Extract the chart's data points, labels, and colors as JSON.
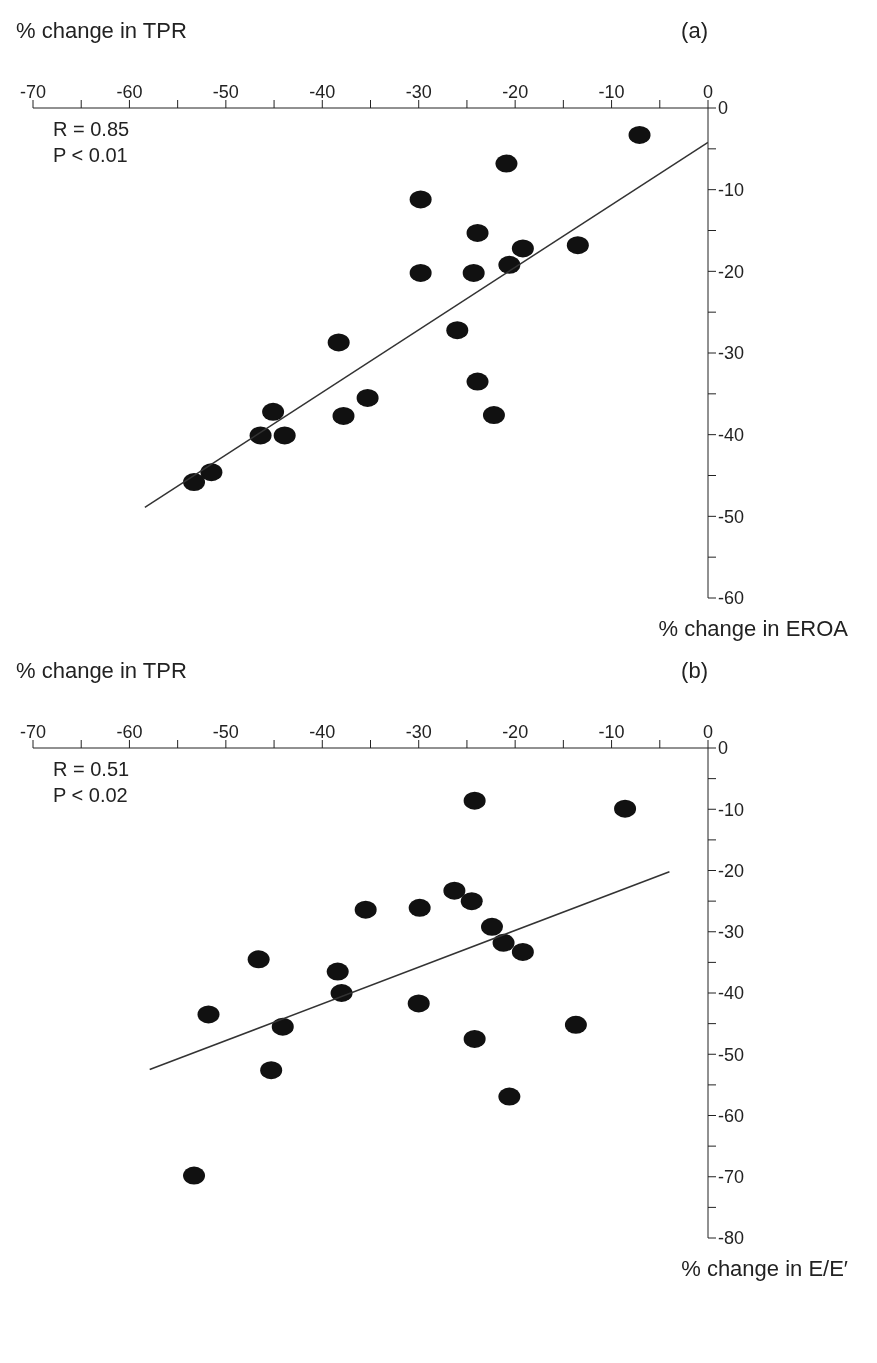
{
  "chart_data": [
    {
      "type": "scatter",
      "title": "(a)",
      "xlabel": "% change in TPR",
      "ylabel": "% change in EROA",
      "annotations": [
        "R = 0.85",
        "P < 0.01"
      ],
      "xlim": [
        -70,
        0
      ],
      "ylim": [
        -60,
        0
      ],
      "xticks": [
        -70,
        {
          "value": -65,
          "label": null
        },
        -60,
        {
          "value": -55,
          "label": null
        },
        -50,
        {
          "value": -45,
          "label": null
        },
        -40,
        {
          "value": -35,
          "label": null
        },
        -30,
        {
          "value": -25,
          "label": null
        },
        -20,
        {
          "value": -15,
          "label": null
        },
        -10,
        {
          "value": -5,
          "label": null
        },
        0
      ],
      "yticks": [
        -60,
        {
          "value": -55,
          "label": null
        },
        -50,
        {
          "value": -45,
          "label": null
        },
        -40,
        {
          "value": -35,
          "label": null
        },
        -30,
        {
          "value": -25,
          "label": null
        },
        -20,
        {
          "value": -15,
          "label": null
        },
        -10,
        {
          "value": -5,
          "label": null
        },
        0
      ],
      "series": [
        {
          "marker": "circle",
          "color": "#111111",
          "x": [
            -7.1,
            -20.9,
            -29.8,
            -23.9,
            -19.2,
            -13.5,
            -29.8,
            -24.3,
            -20.6,
            -26.0,
            -38.3,
            -23.9,
            -22.2,
            -37.8,
            -35.3,
            -45.1,
            -46.4,
            -43.9,
            -51.5,
            -53.3
          ],
          "values": [
            -3.3,
            -6.8,
            -11.2,
            -15.3,
            -17.2,
            -16.8,
            -20.2,
            -20.2,
            -19.2,
            -27.2,
            -28.7,
            -33.5,
            -37.6,
            -37.7,
            -35.5,
            -37.2,
            -40.1,
            -40.1,
            -44.6,
            -45.8
          ]
        },
        {
          "type": "line",
          "color": "#333333",
          "x": [
            -58.4,
            0
          ],
          "values": [
            -48.9,
            -4.2
          ]
        }
      ]
    },
    {
      "type": "scatter",
      "title": "(b)",
      "xlabel": "% change in TPR",
      "ylabel": "% change in E/E′",
      "annotations": [
        "R = 0.51",
        "P < 0.02"
      ],
      "xlim": [
        -70,
        0
      ],
      "ylim": [
        -80,
        0
      ],
      "xticks": [
        -70,
        {
          "value": -65,
          "label": null
        },
        -60,
        {
          "value": -55,
          "label": null
        },
        -50,
        {
          "value": -45,
          "label": null
        },
        -40,
        {
          "value": -35,
          "label": null
        },
        -30,
        {
          "value": -25,
          "label": null
        },
        -20,
        {
          "value": -15,
          "label": null
        },
        -10,
        {
          "value": -5,
          "label": null
        },
        0
      ],
      "yticks": [
        -80,
        {
          "value": -75,
          "label": null
        },
        -70,
        {
          "value": -65,
          "label": null
        },
        -60,
        {
          "value": -55,
          "label": null
        },
        -50,
        {
          "value": -45,
          "label": null
        },
        -40,
        {
          "value": -35,
          "label": null
        },
        -30,
        {
          "value": -25,
          "label": null
        },
        -20,
        {
          "value": -15,
          "label": null
        },
        -10,
        {
          "value": -5,
          "label": null
        },
        0
      ],
      "series": [
        {
          "marker": "circle",
          "color": "#111111",
          "x": [
            -24.2,
            -8.6,
            -26.3,
            -24.5,
            -35.5,
            -29.9,
            -22.4,
            -21.2,
            -19.2,
            -46.6,
            -38.4,
            -38.0,
            -30.0,
            -51.8,
            -44.1,
            -13.7,
            -24.2,
            -45.3,
            -20.6,
            -53.3
          ],
          "values": [
            -8.6,
            -9.9,
            -23.3,
            -25.0,
            -26.4,
            -26.1,
            -29.2,
            -31.8,
            -33.3,
            -34.5,
            -36.5,
            -40.0,
            -41.7,
            -43.5,
            -45.5,
            -45.2,
            -47.5,
            -52.6,
            -56.9,
            -69.8
          ]
        },
        {
          "type": "line",
          "color": "#333333",
          "x": [
            -57.9,
            -4.0
          ],
          "values": [
            -52.5,
            -20.2
          ]
        }
      ]
    }
  ]
}
